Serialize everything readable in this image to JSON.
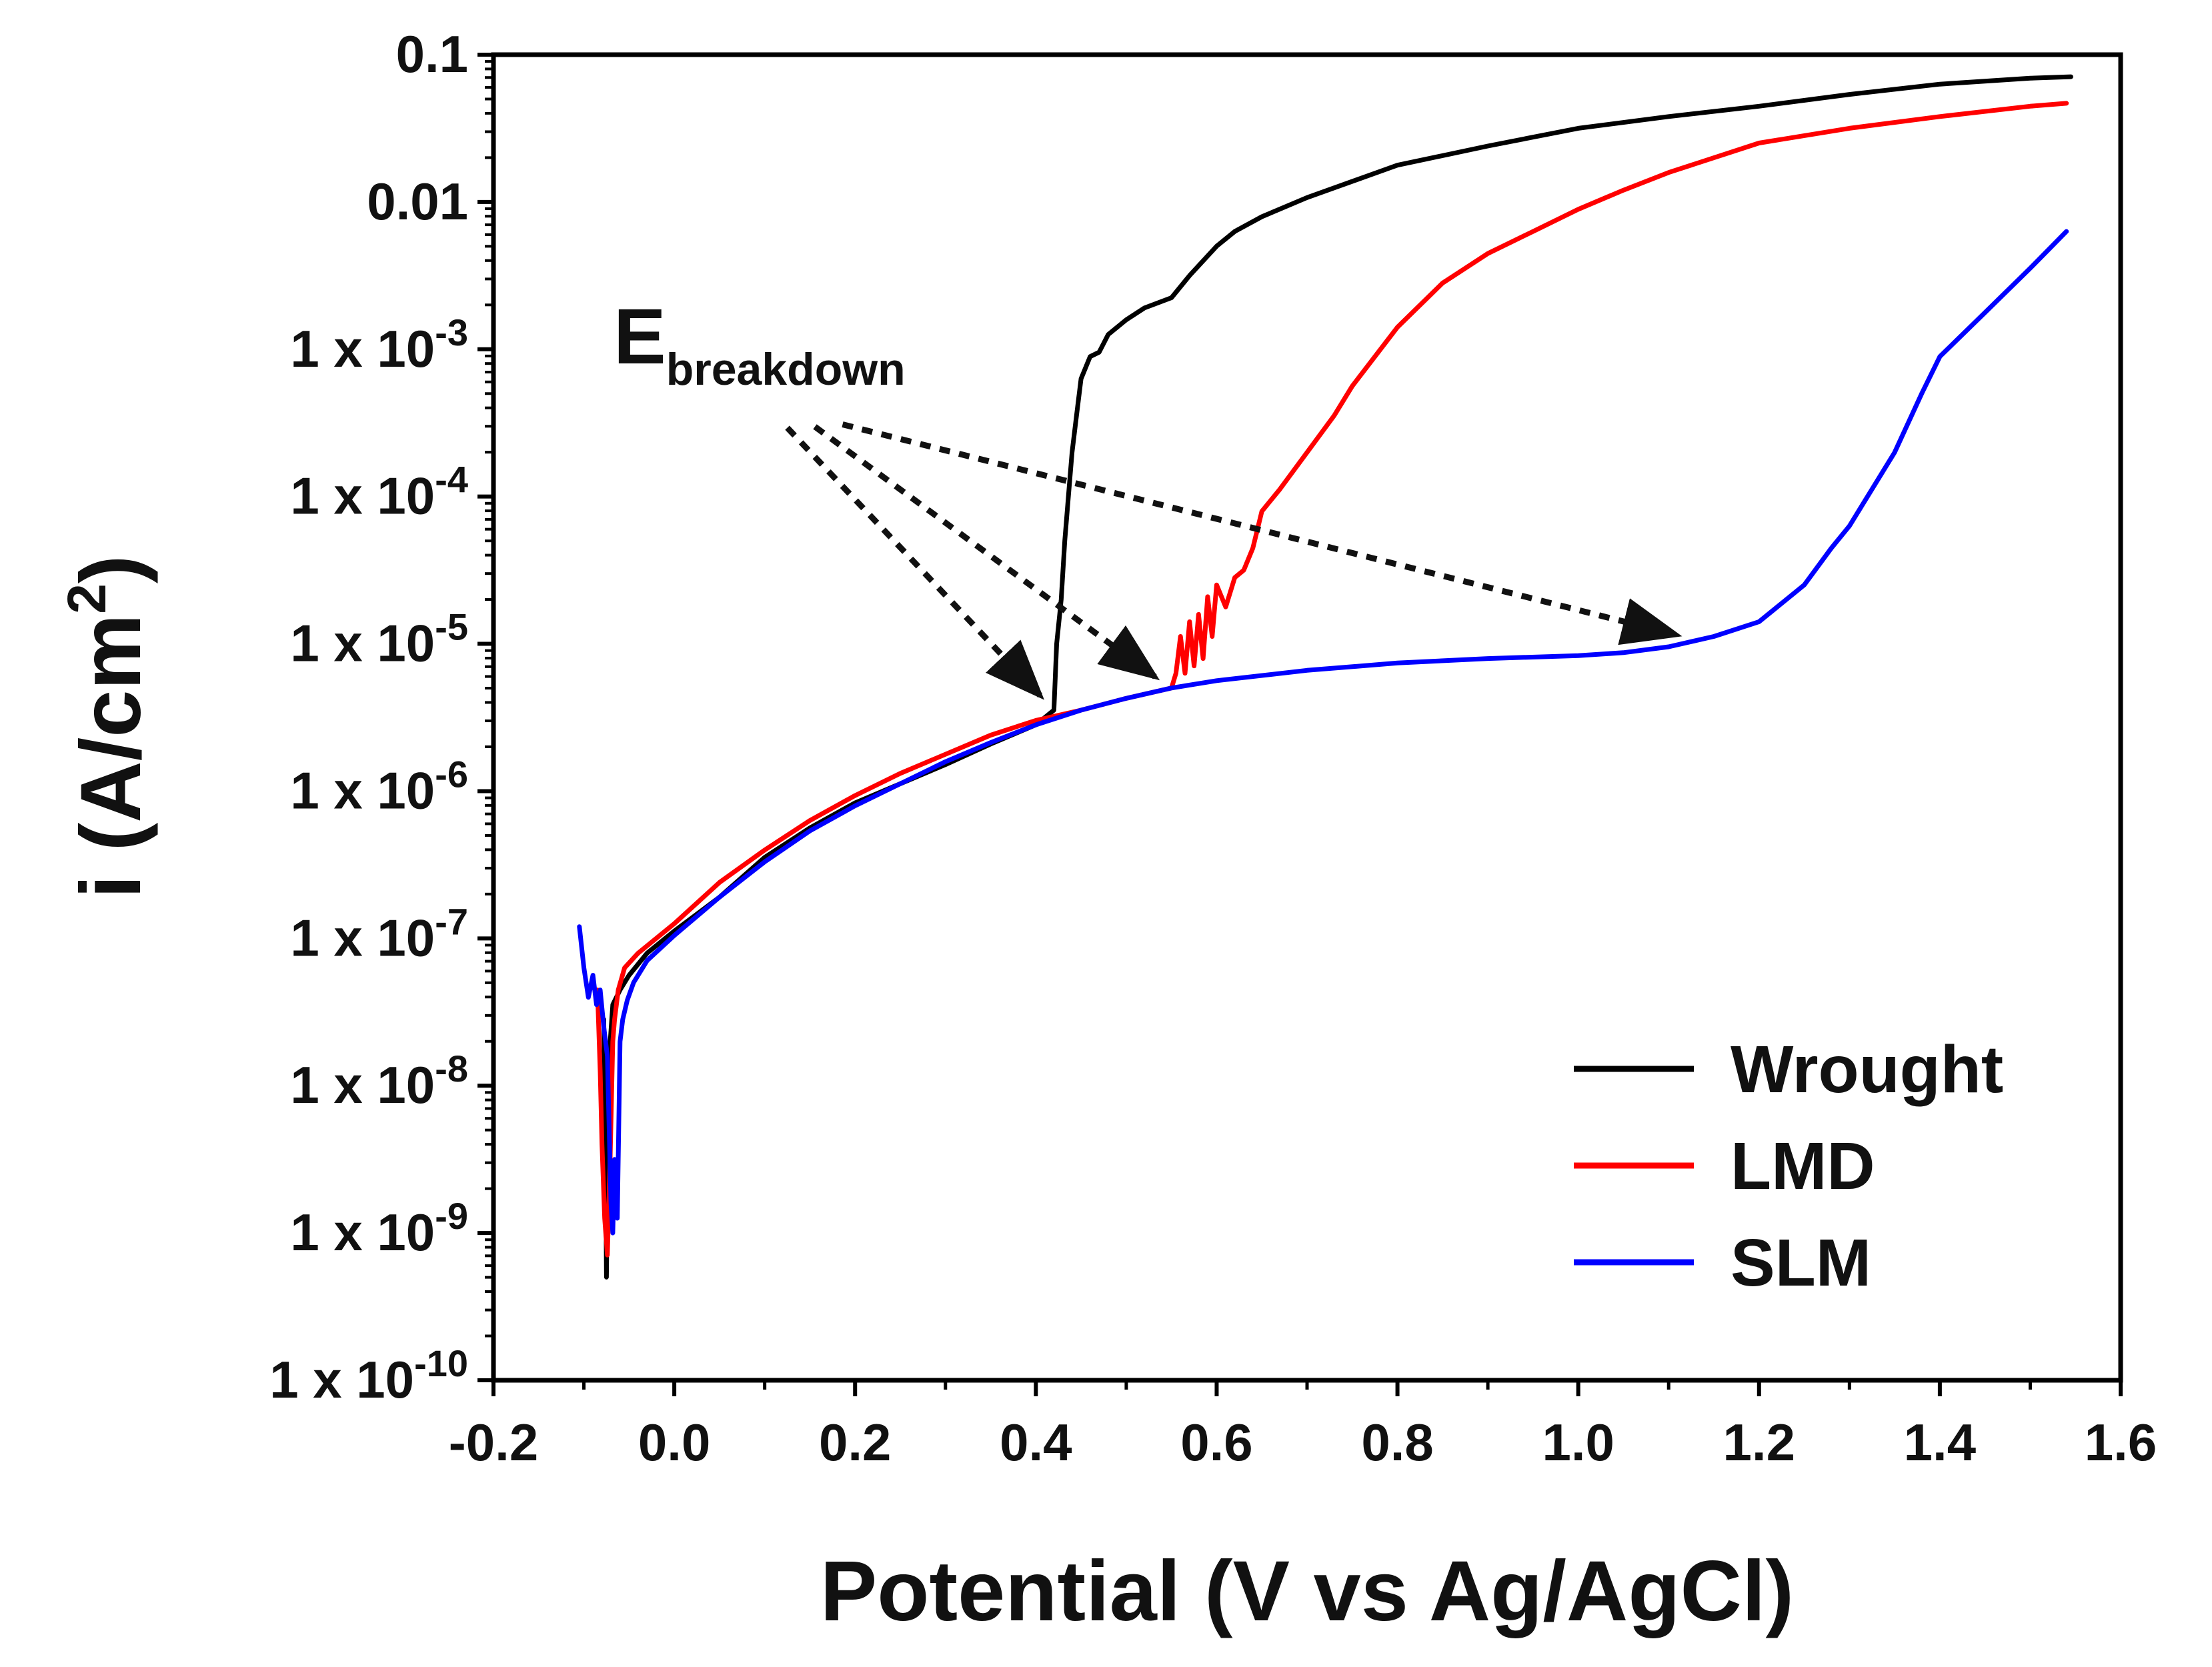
{
  "chart_data": {
    "type": "line",
    "title": "",
    "xlabel": "Potential (V vs Ag/AgCl)",
    "ylabel": {
      "prefix": "i (A/cm",
      "sup": "2",
      "suffix": ")"
    },
    "xlim": [
      -0.2,
      1.6
    ],
    "ylim_log10": [
      -10,
      -1
    ],
    "x_ticks": [
      -0.2,
      0.0,
      0.2,
      0.4,
      0.6,
      0.8,
      1.0,
      1.2,
      1.4,
      1.6
    ],
    "x_tick_labels": [
      "-0.2",
      "0.0",
      "0.2",
      "0.4",
      "0.6",
      "0.8",
      "1.0",
      "1.2",
      "1.4",
      "1.6"
    ],
    "y_tick_labels": [
      {
        "exp": -1,
        "text": "0.1"
      },
      {
        "exp": -2,
        "text": "0.01"
      },
      {
        "exp": -3,
        "base": "1 x 10",
        "sup": "-3"
      },
      {
        "exp": -4,
        "base": "1 x 10",
        "sup": "-4"
      },
      {
        "exp": -5,
        "base": "1 x 10",
        "sup": "-5"
      },
      {
        "exp": -6,
        "base": "1 x 10",
        "sup": "-6"
      },
      {
        "exp": -7,
        "base": "1 x 10",
        "sup": "-7"
      },
      {
        "exp": -8,
        "base": "1 x 10",
        "sup": "-8"
      },
      {
        "exp": -9,
        "base": "1 x 10",
        "sup": "-9"
      },
      {
        "exp": -10,
        "base": "1 x 10",
        "sup": "-10"
      }
    ],
    "annotation": {
      "base": "E",
      "sub": "breakdown",
      "origin": [
        0.12,
        -3.5
      ]
    },
    "series": [
      {
        "name": "Wrought",
        "color": "#000000",
        "points": [
          [
            -0.078,
            -7.55
          ],
          [
            -0.076,
            -8.5
          ],
          [
            -0.075,
            -9.3
          ],
          [
            -0.074,
            -8.7
          ],
          [
            -0.072,
            -7.8
          ],
          [
            -0.068,
            -7.45
          ],
          [
            -0.06,
            -7.35
          ],
          [
            -0.05,
            -7.25
          ],
          [
            -0.03,
            -7.1
          ],
          [
            0.0,
            -6.95
          ],
          [
            0.05,
            -6.72
          ],
          [
            0.1,
            -6.45
          ],
          [
            0.15,
            -6.25
          ],
          [
            0.2,
            -6.08
          ],
          [
            0.25,
            -5.95
          ],
          [
            0.3,
            -5.82
          ],
          [
            0.35,
            -5.68
          ],
          [
            0.4,
            -5.55
          ],
          [
            0.42,
            -5.45
          ],
          [
            0.423,
            -5.0
          ],
          [
            0.428,
            -4.7
          ],
          [
            0.432,
            -4.3
          ],
          [
            0.436,
            -4.0
          ],
          [
            0.44,
            -3.7
          ],
          [
            0.445,
            -3.45
          ],
          [
            0.45,
            -3.2
          ],
          [
            0.46,
            -3.05
          ],
          [
            0.47,
            -3.02
          ],
          [
            0.48,
            -2.9
          ],
          [
            0.5,
            -2.8
          ],
          [
            0.52,
            -2.72
          ],
          [
            0.55,
            -2.65
          ],
          [
            0.57,
            -2.5
          ],
          [
            0.6,
            -2.3
          ],
          [
            0.62,
            -2.2
          ],
          [
            0.65,
            -2.1
          ],
          [
            0.7,
            -1.97
          ],
          [
            0.8,
            -1.75
          ],
          [
            0.9,
            -1.62
          ],
          [
            1.0,
            -1.5
          ],
          [
            1.1,
            -1.42
          ],
          [
            1.2,
            -1.35
          ],
          [
            1.3,
            -1.27
          ],
          [
            1.4,
            -1.2
          ],
          [
            1.5,
            -1.16
          ],
          [
            1.545,
            -1.15
          ]
        ]
      },
      {
        "name": "LMD",
        "color": "#ff0000",
        "points": [
          [
            -0.085,
            -7.35
          ],
          [
            -0.082,
            -7.9
          ],
          [
            -0.08,
            -8.4
          ],
          [
            -0.077,
            -8.9
          ],
          [
            -0.074,
            -9.15
          ],
          [
            -0.071,
            -8.5
          ],
          [
            -0.068,
            -7.7
          ],
          [
            -0.066,
            -7.55
          ],
          [
            -0.062,
            -7.35
          ],
          [
            -0.055,
            -7.2
          ],
          [
            -0.04,
            -7.1
          ],
          [
            -0.02,
            -7.0
          ],
          [
            0.0,
            -6.9
          ],
          [
            0.05,
            -6.62
          ],
          [
            0.1,
            -6.4
          ],
          [
            0.15,
            -6.2
          ],
          [
            0.2,
            -6.03
          ],
          [
            0.25,
            -5.88
          ],
          [
            0.3,
            -5.75
          ],
          [
            0.35,
            -5.62
          ],
          [
            0.4,
            -5.52
          ],
          [
            0.45,
            -5.45
          ],
          [
            0.5,
            -5.37
          ],
          [
            0.55,
            -5.3
          ],
          [
            0.555,
            -5.2
          ],
          [
            0.56,
            -4.95
          ],
          [
            0.565,
            -5.2
          ],
          [
            0.57,
            -4.85
          ],
          [
            0.575,
            -5.15
          ],
          [
            0.58,
            -4.8
          ],
          [
            0.585,
            -5.1
          ],
          [
            0.59,
            -4.68
          ],
          [
            0.595,
            -4.95
          ],
          [
            0.6,
            -4.6
          ],
          [
            0.61,
            -4.75
          ],
          [
            0.62,
            -4.55
          ],
          [
            0.63,
            -4.5
          ],
          [
            0.64,
            -4.35
          ],
          [
            0.65,
            -4.1
          ],
          [
            0.67,
            -3.95
          ],
          [
            0.7,
            -3.7
          ],
          [
            0.73,
            -3.45
          ],
          [
            0.75,
            -3.25
          ],
          [
            0.8,
            -2.85
          ],
          [
            0.85,
            -2.55
          ],
          [
            0.9,
            -2.35
          ],
          [
            0.95,
            -2.2
          ],
          [
            1.0,
            -2.05
          ],
          [
            1.05,
            -1.92
          ],
          [
            1.1,
            -1.8
          ],
          [
            1.2,
            -1.6
          ],
          [
            1.3,
            -1.5
          ],
          [
            1.4,
            -1.42
          ],
          [
            1.5,
            -1.35
          ],
          [
            1.54,
            -1.33
          ]
        ]
      },
      {
        "name": "SLM",
        "color": "#0000ff",
        "points": [
          [
            -0.105,
            -6.92
          ],
          [
            -0.1,
            -7.2
          ],
          [
            -0.095,
            -7.4
          ],
          [
            -0.09,
            -7.25
          ],
          [
            -0.086,
            -7.45
          ],
          [
            -0.082,
            -7.35
          ],
          [
            -0.078,
            -7.6
          ],
          [
            -0.074,
            -7.8
          ],
          [
            -0.072,
            -8.3
          ],
          [
            -0.07,
            -8.8
          ],
          [
            -0.068,
            -9.0
          ],
          [
            -0.066,
            -8.5
          ],
          [
            -0.063,
            -8.9
          ],
          [
            -0.06,
            -7.7
          ],
          [
            -0.057,
            -7.55
          ],
          [
            -0.052,
            -7.42
          ],
          [
            -0.045,
            -7.3
          ],
          [
            -0.03,
            -7.15
          ],
          [
            0.0,
            -6.98
          ],
          [
            0.05,
            -6.72
          ],
          [
            0.1,
            -6.48
          ],
          [
            0.15,
            -6.27
          ],
          [
            0.2,
            -6.1
          ],
          [
            0.25,
            -5.95
          ],
          [
            0.3,
            -5.8
          ],
          [
            0.35,
            -5.67
          ],
          [
            0.4,
            -5.55
          ],
          [
            0.45,
            -5.45
          ],
          [
            0.5,
            -5.37
          ],
          [
            0.55,
            -5.3
          ],
          [
            0.6,
            -5.25
          ],
          [
            0.7,
            -5.18
          ],
          [
            0.8,
            -5.13
          ],
          [
            0.9,
            -5.1
          ],
          [
            1.0,
            -5.08
          ],
          [
            1.05,
            -5.06
          ],
          [
            1.1,
            -5.02
          ],
          [
            1.15,
            -4.95
          ],
          [
            1.2,
            -4.85
          ],
          [
            1.25,
            -4.6
          ],
          [
            1.28,
            -4.35
          ],
          [
            1.3,
            -4.2
          ],
          [
            1.32,
            -4.0
          ],
          [
            1.35,
            -3.7
          ],
          [
            1.38,
            -3.3
          ],
          [
            1.4,
            -3.05
          ],
          [
            1.45,
            -2.75
          ],
          [
            1.5,
            -2.45
          ],
          [
            1.54,
            -2.2
          ]
        ]
      }
    ],
    "breakdown_points": [
      [
        0.42,
        -5.45
      ],
      [
        0.55,
        -5.3
      ],
      [
        1.13,
        -4.97
      ]
    ],
    "legend": {
      "position": "bottom-right",
      "entries": [
        {
          "label": "Wrought",
          "color": "#000000"
        },
        {
          "label": "LMD",
          "color": "#ff0000"
        },
        {
          "label": "SLM",
          "color": "#0000ff"
        }
      ]
    }
  }
}
